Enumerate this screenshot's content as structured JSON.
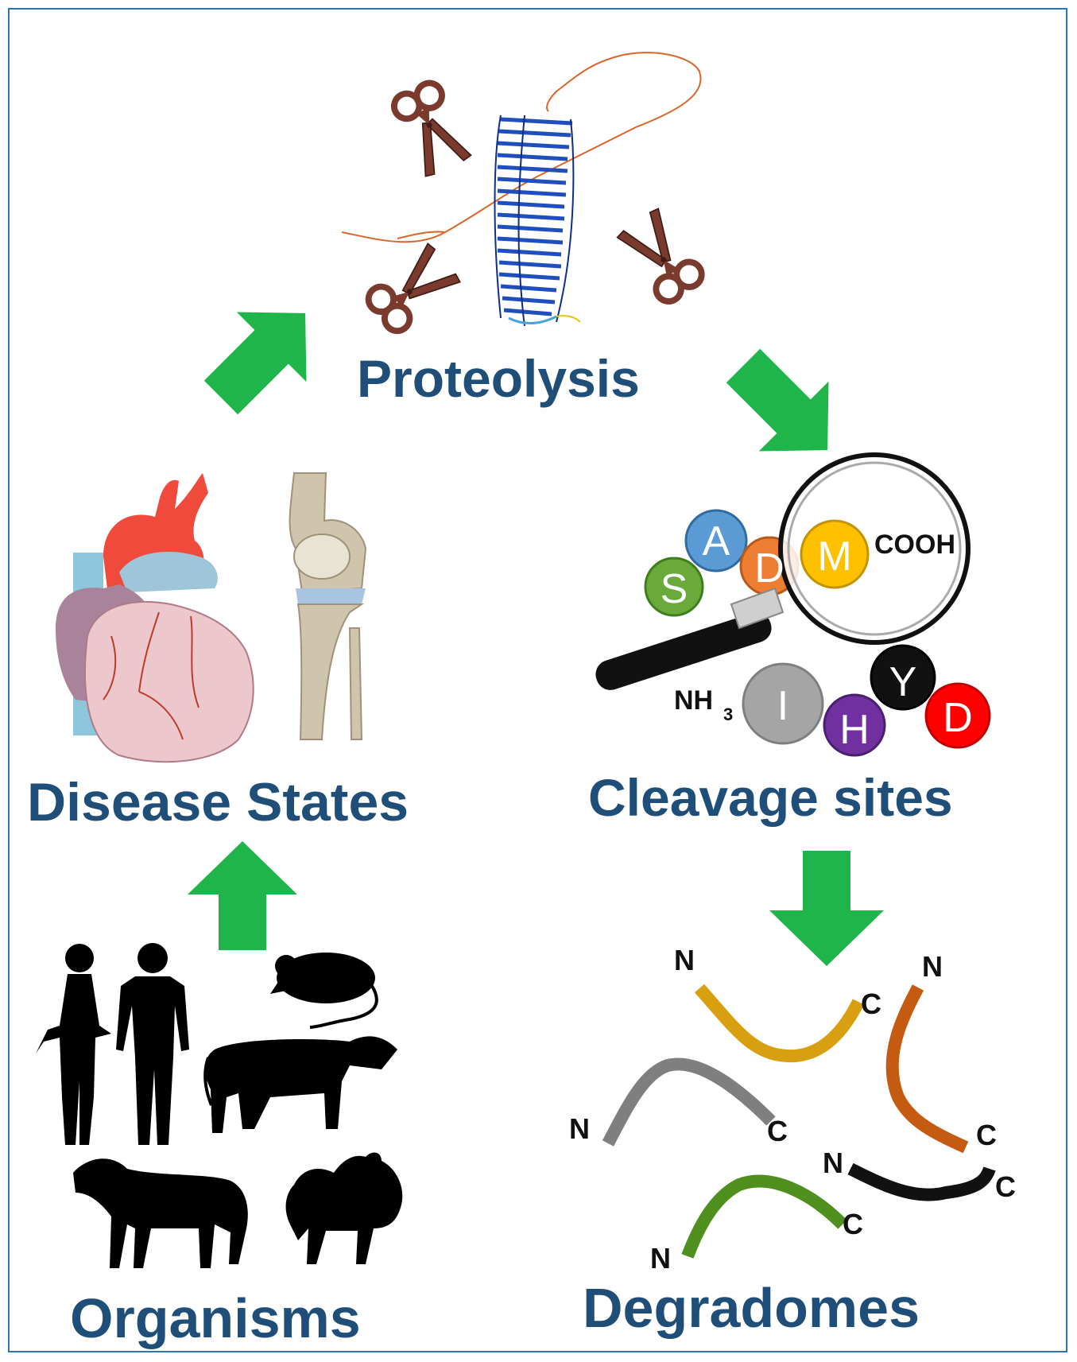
{
  "labels": {
    "proteolysis": "Proteolysis",
    "cleavage_sites": "Cleavage sites",
    "degradomes": "Degradomes",
    "disease_states": "Disease States",
    "organisms": "Organisms"
  },
  "residues": {
    "s": "S",
    "a": "A",
    "d1": "D",
    "m": "M",
    "i": "I",
    "h": "H",
    "y": "Y",
    "d2": "D"
  },
  "termini": {
    "cooh": "COOH",
    "nh": "NH",
    "nh_sub": "3"
  },
  "fragment_ends": {
    "n": "N",
    "c": "C"
  },
  "colors": {
    "title_blue": "#1f4e79",
    "arrow_green": "#1fb54a",
    "frame_blue": "#2e75b6",
    "scissors_brown": "#7b3a2e"
  }
}
